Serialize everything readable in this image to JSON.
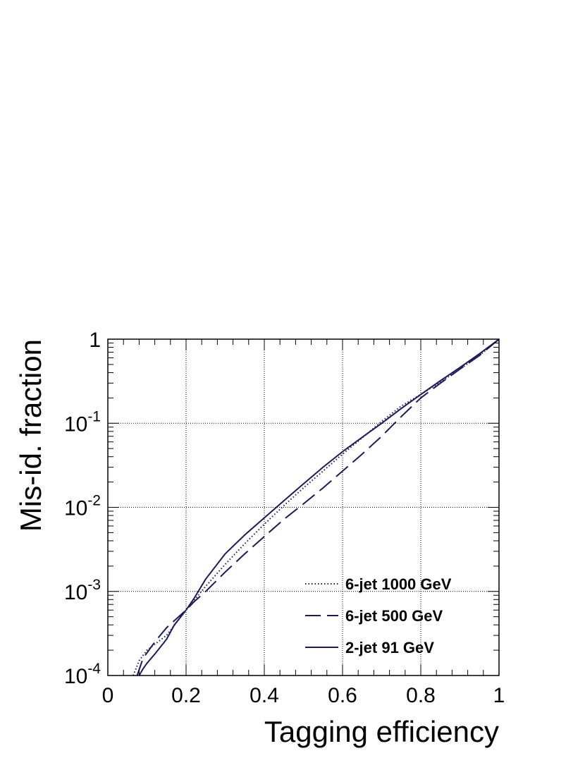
{
  "chart_data": {
    "type": "line",
    "xlabel": "Tagging efficiency",
    "ylabel": "Mis-id. fraction",
    "xlim": [
      0,
      1
    ],
    "ylim": [
      0.0001,
      1
    ],
    "yscale": "log",
    "grid": true,
    "legend_position": "bottom-right",
    "x_tick_labels": [
      "0",
      "0.2",
      "0.4",
      "0.6",
      "0.8",
      "1"
    ],
    "x_ticks": [
      0,
      0.2,
      0.4,
      0.6,
      0.8,
      1
    ],
    "y_ticks": [
      {
        "value": 0.0001,
        "base": "10",
        "exp": "-4"
      },
      {
        "value": 0.001,
        "base": "10",
        "exp": "-3"
      },
      {
        "value": 0.01,
        "base": "10",
        "exp": "-2"
      },
      {
        "value": 0.1,
        "base": "10",
        "exp": "-1"
      },
      {
        "value": 1,
        "base": "1",
        "exp": ""
      }
    ],
    "series": [
      {
        "name": "6-jet 1000 GeV",
        "style": "dotted",
        "color": "#1a1a5e",
        "x": [
          0.065,
          0.08,
          0.1,
          0.15,
          0.2,
          0.25,
          0.3,
          0.35,
          0.4,
          0.45,
          0.5,
          0.55,
          0.6,
          0.65,
          0.7,
          0.75,
          0.8,
          0.85,
          0.9,
          0.95,
          1.0
        ],
        "y": [
          0.0001,
          0.00015,
          0.0002,
          0.0003,
          0.0006,
          0.00115,
          0.0021,
          0.0037,
          0.0063,
          0.0105,
          0.017,
          0.027,
          0.043,
          0.067,
          0.105,
          0.16,
          0.22,
          0.31,
          0.44,
          0.64,
          1.0
        ]
      },
      {
        "name": "6-jet 500 GeV",
        "style": "dashed",
        "color": "#1a1a5e",
        "x": [
          0.075,
          0.09,
          0.12,
          0.15,
          0.2,
          0.22,
          0.25,
          0.3,
          0.35,
          0.4,
          0.45,
          0.5,
          0.55,
          0.6,
          0.65,
          0.7,
          0.75,
          0.8,
          0.85,
          0.9,
          0.95,
          1.0
        ],
        "y": [
          0.0001,
          0.00016,
          0.00025,
          0.00037,
          0.0006,
          0.00075,
          0.001,
          0.0017,
          0.0028,
          0.0045,
          0.0072,
          0.011,
          0.017,
          0.027,
          0.043,
          0.07,
          0.12,
          0.2,
          0.3,
          0.44,
          0.64,
          1.0
        ]
      },
      {
        "name": "2-jet 91 GeV",
        "style": "solid",
        "color": "#1a1a5e",
        "x": [
          0.08,
          0.09,
          0.1,
          0.12,
          0.15,
          0.17,
          0.2,
          0.22,
          0.25,
          0.3,
          0.35,
          0.4,
          0.45,
          0.5,
          0.55,
          0.6,
          0.65,
          0.7,
          0.75,
          0.8,
          0.85,
          0.9,
          0.95,
          1.0
        ],
        "y": [
          0.0001,
          0.00012,
          0.00014,
          0.00018,
          0.00027,
          0.0004,
          0.0006,
          0.00082,
          0.0014,
          0.0028,
          0.0047,
          0.0075,
          0.012,
          0.019,
          0.03,
          0.046,
          0.068,
          0.1,
          0.15,
          0.22,
          0.32,
          0.46,
          0.67,
          1.0
        ]
      }
    ]
  }
}
